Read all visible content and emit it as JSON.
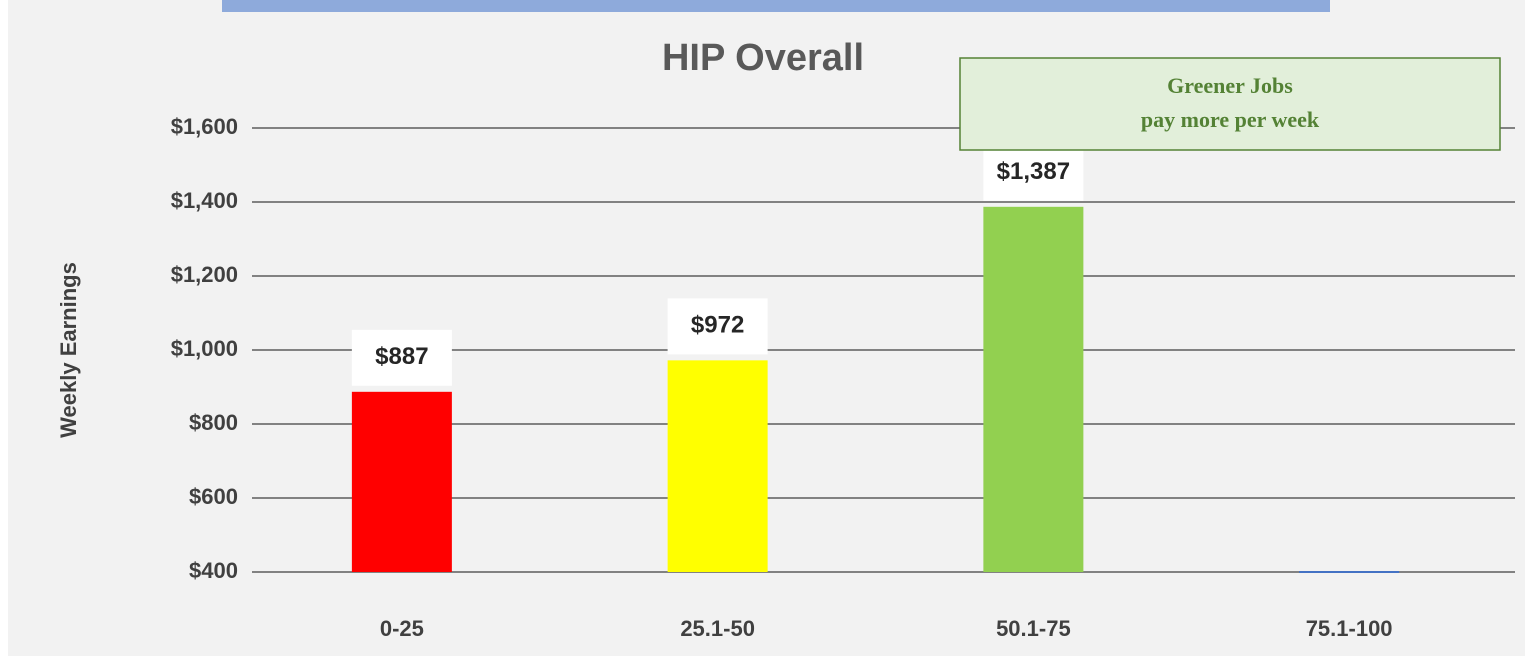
{
  "chart_data": {
    "type": "bar",
    "title": "HIP Overall",
    "y_label": "Weekly Earnings",
    "categories": [
      "0-25",
      "25.1-50",
      "50.1-75",
      "75.1-100"
    ],
    "values": [
      887,
      972,
      1387,
      400
    ],
    "value_labels": [
      "$887",
      "$972",
      "$1,387",
      null
    ],
    "colors": [
      "#ff0000",
      "#ffff00",
      "#92d050",
      "#4472c4"
    ],
    "ylim": [
      400,
      1600
    ],
    "yticks": [
      {
        "value": 400,
        "label": "$400"
      },
      {
        "value": 600,
        "label": "$600"
      },
      {
        "value": 800,
        "label": "$800"
      },
      {
        "value": 1000,
        "label": "$1,000"
      },
      {
        "value": 1200,
        "label": "$1,200"
      },
      {
        "value": 1400,
        "label": "$1,400"
      },
      {
        "value": 1600,
        "label": "$1,600"
      }
    ],
    "grid": true,
    "annotation": [
      "Greener Jobs",
      "pay more per week"
    ]
  }
}
